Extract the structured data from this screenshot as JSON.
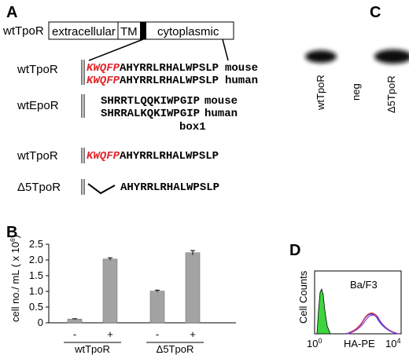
{
  "panel_labels": [
    "A",
    "B",
    "C",
    "D"
  ],
  "domain_diagram": {
    "protein": "wtTpoR",
    "domains": [
      "extracellular",
      "TM",
      "cytoplasmic"
    ]
  },
  "alignments": [
    {
      "label": "wtTpoR",
      "rows": [
        {
          "motif": "KWQFP",
          "sequence": "AHYRRLRHALWPSLP",
          "species": "mouse"
        },
        {
          "motif": "KWQFP",
          "sequence": "AHYRRLRHALWPSLP",
          "species": "human"
        }
      ]
    },
    {
      "label": "wtEpoR",
      "rows": [
        {
          "sequence": "SHRRTLQQKIWPGIP",
          "species": "mouse"
        },
        {
          "sequence": "SHRRALKQKIWPGIP",
          "species": "human"
        }
      ],
      "note": "box1"
    },
    {
      "label": "wtTpoR",
      "rows": [
        {
          "motif": "KWQFP",
          "sequence": "AHYRRLRHALWPSLP"
        }
      ]
    },
    {
      "label": "Δ5TpoR",
      "rows": [
        {
          "sequence": "AHYRRLRHALWPSLP"
        }
      ]
    }
  ],
  "blot": {
    "lanes": [
      "wtTpoR",
      "neg",
      "Δ5TpoR"
    ]
  },
  "flow": {
    "title": "Ba/F3",
    "ylabel": "Cell Counts",
    "xlabel": "HA-PE",
    "xticks": [
      {
        "base": "10",
        "exp": "0"
      },
      {
        "base": "10",
        "exp": "4"
      }
    ]
  },
  "chart_data": {
    "type": "bar",
    "ylabel": "cell no./ mL ( x 10",
    "ylabel_exp": "6",
    "ylabel_end": ")",
    "categories": [
      "-",
      "+",
      "-",
      "+"
    ],
    "groups": [
      "wtTpoR",
      "Δ5TpoR"
    ],
    "values": [
      0.12,
      2.03,
      1.01,
      2.23
    ],
    "errors": [
      0.01,
      0.04,
      0.03,
      0.07
    ],
    "color": "#a3a3a3",
    "ylim": [
      0,
      2.5
    ],
    "yticks": [
      0,
      0.5,
      {
        "value": 1,
        "label": "1.0"
      },
      {
        "value": 1.5,
        "label": "1.5"
      },
      {
        "value": 2,
        "label": "2.0"
      },
      {
        "value": 2.5,
        "label": "2.5"
      }
    ]
  }
}
